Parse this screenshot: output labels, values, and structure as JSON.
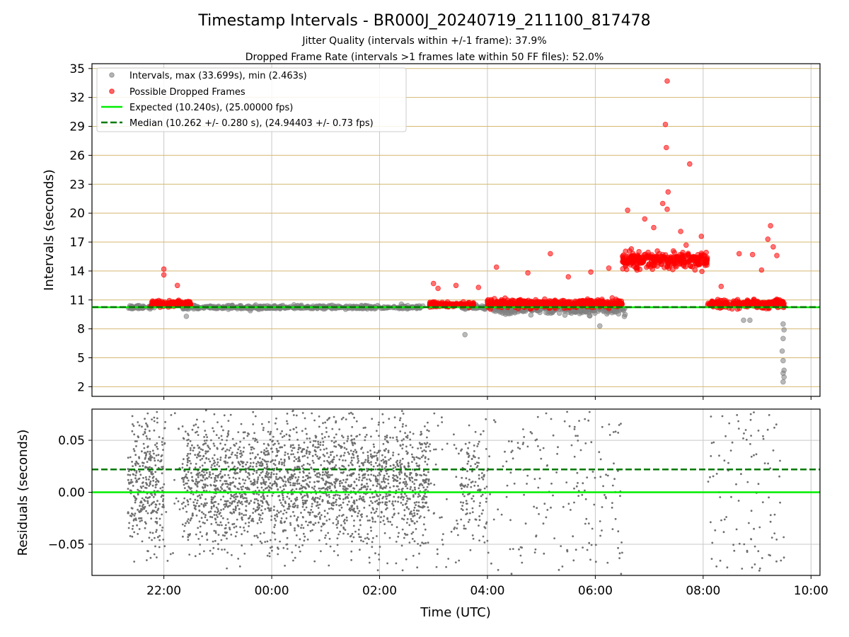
{
  "figure": {
    "title": "Timestamp Intervals - BR000J_20240719_211100_817478",
    "subtitle_1": "Jitter Quality (intervals within +/-1 frame): 37.9%",
    "subtitle_2": "Dropped Frame Rate (intervals >1 frames late within 50 FF files): 52.0%",
    "xlabel": "Time (UTC)"
  },
  "colors": {
    "normal_points": "#808080",
    "dropped_points": "#ff0000",
    "expected_line": "#00ee00",
    "median_line": "#007a00",
    "hgrid": "#d4b872",
    "vgrid": "#c8c8c8",
    "residual_points": "#6e6e6e"
  },
  "chart_data": [
    {
      "type": "scatter",
      "panel": "intervals",
      "ylabel": "Intervals (seconds)",
      "ylim": [
        1,
        35.5
      ],
      "yticks": [
        2,
        5,
        8,
        11,
        14,
        17,
        20,
        23,
        26,
        29,
        32,
        35
      ],
      "xlim": [
        "20:40",
        "10:10"
      ],
      "xticks": [
        "22:00",
        "00:00",
        "02:00",
        "04:00",
        "06:00",
        "08:00",
        "10:00"
      ],
      "grid": true,
      "legend_placement": "upper-left",
      "legend": [
        {
          "label": "Intervals, max (33.699s), min (2.463s)",
          "kind": "point",
          "color": "#808080"
        },
        {
          "label": "Possible Dropped Frames",
          "kind": "point",
          "color": "#ff0000"
        },
        {
          "label": "Expected (10.240s), (25.00000 fps)",
          "kind": "solid-line",
          "color": "#00ee00"
        },
        {
          "label": "Median (10.262 +/- 0.280 s), (24.94403 +/- 0.73 fps)",
          "kind": "dashed-line",
          "color": "#007a00"
        }
      ],
      "reference_lines": {
        "expected": 10.24,
        "median": 10.262
      },
      "series": [
        {
          "name": "Intervals, max (33.699s), min (2.463s)",
          "segments": [
            {
              "from": "21:20",
              "to": "21:50",
              "typical": 10.24,
              "spread": 0.15
            },
            {
              "from": "22:20",
              "to": "02:50",
              "typical": 10.24,
              "spread": 0.15
            },
            {
              "from": "03:30",
              "to": "04:05",
              "typical": 10.24,
              "spread": 0.15
            },
            {
              "from": "04:05",
              "to": "06:35",
              "typical": 10.0,
              "spread": 0.4
            }
          ],
          "outliers": [
            {
              "x": "22:25",
              "y": 9.3
            },
            {
              "x": "03:35",
              "y": 7.4
            },
            {
              "x": "06:05",
              "y": 8.3
            },
            {
              "x": "08:45",
              "y": 8.9
            },
            {
              "x": "08:52",
              "y": 8.9
            },
            {
              "x": "09:29",
              "y": 8.5
            },
            {
              "x": "09:30",
              "y": 7.9
            },
            {
              "x": "09:29",
              "y": 7.0
            },
            {
              "x": "09:28",
              "y": 5.7
            },
            {
              "x": "09:29",
              "y": 4.7
            },
            {
              "x": "09:30",
              "y": 3.7
            },
            {
              "x": "09:29",
              "y": 3.4
            },
            {
              "x": "09:30",
              "y": 3.0
            },
            {
              "x": "09:29",
              "y": 2.5
            }
          ]
        },
        {
          "name": "Possible Dropped Frames",
          "segments": [
            {
              "from": "21:45",
              "to": "22:30",
              "typical": 10.6,
              "spread": 0.25
            },
            {
              "from": "02:55",
              "to": "03:45",
              "typical": 10.5,
              "spread": 0.2
            },
            {
              "from": "04:00",
              "to": "06:30",
              "typical": 10.6,
              "spread": 0.35
            },
            {
              "from": "06:30",
              "to": "08:05",
              "typical": 15.2,
              "spread": 0.7
            },
            {
              "from": "08:05",
              "to": "09:30",
              "typical": 10.6,
              "spread": 0.35
            }
          ],
          "outliers": [
            {
              "x": "22:00",
              "y": 14.2
            },
            {
              "x": "22:00",
              "y": 13.6
            },
            {
              "x": "22:15",
              "y": 12.5
            },
            {
              "x": "03:00",
              "y": 12.7
            },
            {
              "x": "03:05",
              "y": 12.2
            },
            {
              "x": "03:25",
              "y": 12.5
            },
            {
              "x": "03:50",
              "y": 12.3
            },
            {
              "x": "04:10",
              "y": 14.4
            },
            {
              "x": "04:45",
              "y": 13.8
            },
            {
              "x": "05:10",
              "y": 15.8
            },
            {
              "x": "05:30",
              "y": 13.4
            },
            {
              "x": "05:55",
              "y": 13.9
            },
            {
              "x": "06:15",
              "y": 14.3
            },
            {
              "x": "06:36",
              "y": 20.3
            },
            {
              "x": "06:55",
              "y": 19.4
            },
            {
              "x": "07:05",
              "y": 18.5
            },
            {
              "x": "07:15",
              "y": 21.0
            },
            {
              "x": "07:18",
              "y": 29.2
            },
            {
              "x": "07:19",
              "y": 26.8
            },
            {
              "x": "07:20",
              "y": 33.7
            },
            {
              "x": "07:21",
              "y": 22.2
            },
            {
              "x": "07:20",
              "y": 20.4
            },
            {
              "x": "07:35",
              "y": 18.1
            },
            {
              "x": "07:45",
              "y": 25.1
            },
            {
              "x": "07:58",
              "y": 17.6
            },
            {
              "x": "08:20",
              "y": 12.4
            },
            {
              "x": "08:40",
              "y": 15.8
            },
            {
              "x": "08:55",
              "y": 15.7
            },
            {
              "x": "09:05",
              "y": 14.1
            },
            {
              "x": "09:12",
              "y": 17.3
            },
            {
              "x": "09:15",
              "y": 18.7
            },
            {
              "x": "09:18",
              "y": 16.5
            },
            {
              "x": "09:22",
              "y": 15.6
            }
          ]
        }
      ]
    },
    {
      "type": "scatter",
      "panel": "residuals",
      "ylabel": "Residuals (seconds)",
      "ylim": [
        -0.08,
        0.08
      ],
      "yticks": [
        "0.05",
        "0.00",
        "−0.05"
      ],
      "ytick_values": [
        0.05,
        0.0,
        -0.05
      ],
      "xlim": [
        "20:40",
        "10:10"
      ],
      "xticks": [
        "22:00",
        "00:00",
        "02:00",
        "04:00",
        "06:00",
        "08:00",
        "10:00"
      ],
      "grid": true,
      "reference_lines": {
        "expected": 0.0,
        "median": 0.022
      },
      "series": [
        {
          "segments": [
            {
              "from": "21:20",
              "to": "22:00",
              "density": "dense"
            },
            {
              "from": "22:00",
              "to": "22:20",
              "density": "sparse"
            },
            {
              "from": "22:20",
              "to": "02:55",
              "density": "dense"
            },
            {
              "from": "02:55",
              "to": "03:30",
              "density": "sparse"
            },
            {
              "from": "03:30",
              "to": "04:00",
              "density": "medium"
            },
            {
              "from": "04:00",
              "to": "06:30",
              "density": "sparse"
            },
            {
              "from": "08:05",
              "to": "09:30",
              "density": "sparse"
            }
          ]
        }
      ]
    }
  ]
}
